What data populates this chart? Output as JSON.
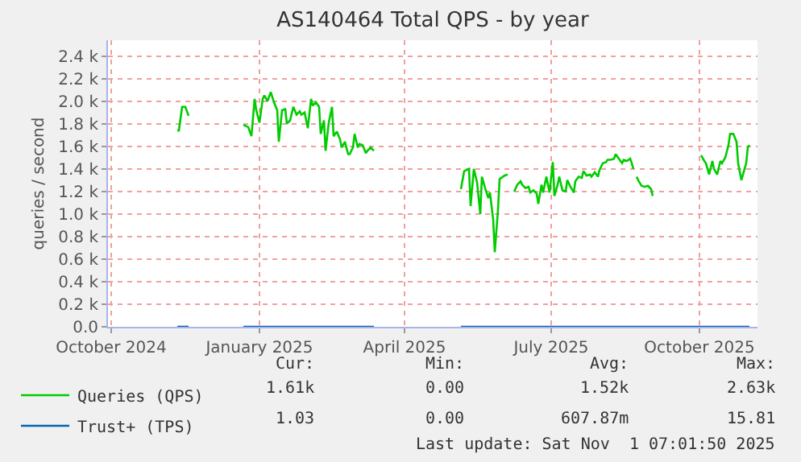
{
  "chart_data": {
    "type": "line",
    "title": "AS140464 Total QPS - by year",
    "ylabel": "queries / second",
    "xlim": [
      "2024-09-29",
      "2025-11-06"
    ],
    "xticks": [
      {
        "value": "2024-10-01",
        "label": "October 2024"
      },
      {
        "value": "2025-01-01",
        "label": "January 2025"
      },
      {
        "value": "2025-04-01",
        "label": "April 2025"
      },
      {
        "value": "2025-07-01",
        "label": "July 2025"
      },
      {
        "value": "2025-10-01",
        "label": "October 2025"
      }
    ],
    "ylim": [
      0,
      2540
    ],
    "yticks": [
      {
        "value": 0,
        "label": "0.0"
      },
      {
        "value": 200,
        "label": "0.2 k"
      },
      {
        "value": 400,
        "label": "0.4 k"
      },
      {
        "value": 600,
        "label": "0.6 k"
      },
      {
        "value": 800,
        "label": "0.8 k"
      },
      {
        "value": 1000,
        "label": "1.0 k"
      },
      {
        "value": 1200,
        "label": "1.2 k"
      },
      {
        "value": 1400,
        "label": "1.4 k"
      },
      {
        "value": 1600,
        "label": "1.6 k"
      },
      {
        "value": 1800,
        "label": "1.8 k"
      },
      {
        "value": 2000,
        "label": "2.0 k"
      },
      {
        "value": 2200,
        "label": "2.2 k"
      },
      {
        "value": 2400,
        "label": "2.4 k"
      }
    ],
    "grid": true,
    "legend": "bottom left",
    "marker": "none",
    "line_style": "solid",
    "series": [
      {
        "name": "Queries (QPS)",
        "color": "#00cc00",
        "x": [
          "2024-11-11",
          "2024-11-12",
          "2024-11-14",
          "2024-11-16",
          "2024-11-18",
          "2024-11-30",
          "2024-12-22",
          "2024-12-25",
          "2024-12-27",
          "2024-12-29",
          "2024-12-30",
          "2025-01-01",
          "2025-01-03",
          "2025-01-04",
          "2025-01-06",
          "2025-01-08",
          "2025-01-10",
          "2025-01-12",
          "2025-01-13",
          "2025-01-15",
          "2025-01-17",
          "2025-01-18",
          "2025-01-20",
          "2025-01-22",
          "2025-01-24",
          "2025-01-26",
          "2025-01-27",
          "2025-01-29",
          "2025-01-31",
          "2025-02-02",
          "2025-02-03",
          "2025-02-05",
          "2025-02-07",
          "2025-02-08",
          "2025-02-10",
          "2025-02-11",
          "2025-02-13",
          "2025-02-15",
          "2025-02-16",
          "2025-02-18",
          "2025-02-20",
          "2025-02-21",
          "2025-02-23",
          "2025-02-25",
          "2025-02-26",
          "2025-02-28",
          "2025-03-01",
          "2025-03-03",
          "2025-03-04",
          "2025-03-06",
          "2025-03-08",
          "2025-03-09",
          "2025-03-11",
          "2025-03-13",
          "2025-04-20",
          "2025-05-06",
          "2025-05-08",
          "2025-05-11",
          "2025-05-12",
          "2025-05-14",
          "2025-05-16",
          "2025-05-18",
          "2025-05-19",
          "2025-05-21",
          "2025-05-23",
          "2025-05-24",
          "2025-05-26",
          "2025-05-27",
          "2025-05-29",
          "2025-05-30",
          "2025-06-01",
          "2025-06-02",
          "2025-06-04",
          "2025-06-06",
          "2025-06-08",
          "2025-06-10",
          "2025-06-12",
          "2025-06-13",
          "2025-06-15",
          "2025-06-17",
          "2025-06-18",
          "2025-06-20",
          "2025-06-22",
          "2025-06-23",
          "2025-06-25",
          "2025-06-26",
          "2025-06-28",
          "2025-06-30",
          "2025-07-02",
          "2025-07-03",
          "2025-07-05",
          "2025-07-06",
          "2025-07-08",
          "2025-07-10",
          "2025-07-11",
          "2025-07-13",
          "2025-07-15",
          "2025-07-16",
          "2025-07-18",
          "2025-07-20",
          "2025-07-21",
          "2025-07-23",
          "2025-07-25",
          "2025-07-26",
          "2025-07-28",
          "2025-07-30",
          "2025-07-31",
          "2025-08-02",
          "2025-08-04",
          "2025-08-05",
          "2025-08-07",
          "2025-08-09",
          "2025-08-10",
          "2025-08-12",
          "2025-08-14",
          "2025-08-15",
          "2025-08-17",
          "2025-08-19",
          "2025-08-20",
          "2025-08-21",
          "2025-08-22",
          "2025-08-23",
          "2025-08-24",
          "2025-08-26",
          "2025-08-28",
          "2025-08-30",
          "2025-09-01",
          "2025-09-02",
          "2025-09-15",
          "2025-10-02",
          "2025-10-04",
          "2025-10-05",
          "2025-10-07",
          "2025-10-09",
          "2025-10-10",
          "2025-10-12",
          "2025-10-14",
          "2025-10-15",
          "2025-10-17",
          "2025-10-19",
          "2025-10-20",
          "2025-10-22",
          "2025-10-24",
          "2025-10-25",
          "2025-10-27",
          "2025-10-29",
          "2025-10-30",
          "2025-10-31",
          "2025-11-01"
        ],
        "values": [
          1740,
          1740,
          1950,
          1950,
          1870,
          null,
          1790,
          1770,
          1690,
          2020,
          1920,
          1810,
          2020,
          2050,
          2000,
          2080,
          1990,
          1920,
          1640,
          1920,
          1930,
          1800,
          1830,
          1950,
          1880,
          1910,
          1880,
          1900,
          1760,
          2020,
          1960,
          1990,
          1950,
          1710,
          1830,
          1560,
          1810,
          1950,
          1690,
          1730,
          1660,
          1590,
          1640,
          1530,
          1530,
          1590,
          1710,
          1590,
          1620,
          1610,
          1540,
          1560,
          1590,
          1560,
          null,
          1220,
          1380,
          1400,
          1070,
          1400,
          1280,
          1000,
          1330,
          1230,
          1140,
          1190,
          950,
          660,
          1040,
          1310,
          1330,
          1340,
          1350,
          null,
          1200,
          1260,
          1290,
          1260,
          1230,
          1240,
          1190,
          1210,
          1180,
          1090,
          1260,
          1190,
          1330,
          1190,
          1460,
          1160,
          1260,
          1330,
          1210,
          1200,
          1300,
          1240,
          1190,
          1290,
          1330,
          1320,
          1380,
          1340,
          1350,
          1330,
          1370,
          1330,
          1390,
          1450,
          1460,
          1480,
          1480,
          1490,
          1530,
          1490,
          1450,
          1480,
          1470,
          1490,
          1450,
          1400,
          null,
          1330,
          1300,
          1250,
          1240,
          1250,
          1220,
          1160,
          null,
          1520,
          1470,
          1450,
          1350,
          1470,
          1400,
          1350,
          1470,
          1450,
          1500,
          1610,
          1710,
          1710,
          1640,
          1450,
          1300,
          1400,
          1450,
          1590,
          1610
        ]
      },
      {
        "name": "Trust+ (TPS)",
        "color": "#0066b3",
        "x": [
          "2024-11-11",
          "2024-11-18",
          "2024-11-30",
          "2024-12-22",
          "2025-03-13",
          "2025-04-20",
          "2025-05-06",
          "2025-11-01"
        ],
        "values": [
          0,
          0,
          null,
          0,
          0,
          null,
          0,
          0
        ]
      }
    ],
    "annotations": [
      "Cur:",
      "Min:",
      "Avg:",
      "Max:",
      "1.61k",
      "0.00",
      "1.52k",
      "2.63k",
      "1.03",
      "0.00",
      "607.87m",
      "15.81",
      "Last update: Sat Nov  1 07:01:50 2025"
    ]
  }
}
